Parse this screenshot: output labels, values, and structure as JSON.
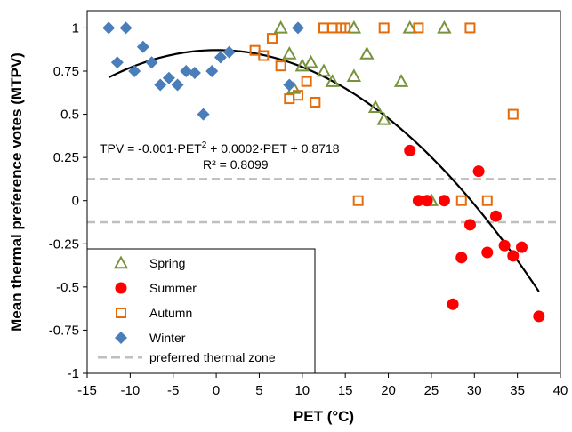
{
  "chart_data": {
    "type": "scatter",
    "title": "",
    "xlabel": "PET (°C)",
    "ylabel": "Mean thermal preference votes (MTPV)",
    "xlim": [
      -15,
      40
    ],
    "ylim": [
      -1,
      1.1
    ],
    "x_ticks": [
      "-15",
      "-10",
      "-5",
      "0",
      "5",
      "10",
      "15",
      "20",
      "25",
      "30",
      "35",
      "40"
    ],
    "y_ticks": [
      "-1",
      "-0.75",
      "-0.5",
      "-0.25",
      "0",
      "0.25",
      "0.5",
      "0.75",
      "1"
    ],
    "x_tick_values": [
      -15,
      -10,
      -5,
      0,
      5,
      10,
      15,
      20,
      25,
      30,
      35,
      40
    ],
    "y_tick_values": [
      -1,
      -0.75,
      -0.5,
      -0.25,
      0,
      0.25,
      0.5,
      0.75,
      1
    ],
    "grid": false,
    "legend_position": "bottom-left",
    "series": [
      {
        "name": "Spring",
        "marker": "triangle",
        "color": "#77933c",
        "points": [
          [
            7.5,
            1
          ],
          [
            16,
            1
          ],
          [
            22.5,
            1
          ],
          [
            26.5,
            1
          ],
          [
            8.5,
            0.85
          ],
          [
            17.5,
            0.85
          ],
          [
            10,
            0.78
          ],
          [
            11,
            0.8
          ],
          [
            12.5,
            0.75
          ],
          [
            9,
            0.65
          ],
          [
            13.5,
            0.69
          ],
          [
            16,
            0.72
          ],
          [
            21.5,
            0.69
          ],
          [
            18.5,
            0.54
          ],
          [
            19.5,
            0.47
          ],
          [
            25,
            0
          ]
        ]
      },
      {
        "name": "Summer",
        "marker": "circle",
        "color": "#ff0000",
        "points": [
          [
            22.5,
            0.29
          ],
          [
            30.5,
            0.17
          ],
          [
            23.5,
            0
          ],
          [
            24.5,
            0
          ],
          [
            26.5,
            0
          ],
          [
            32.5,
            -0.09
          ],
          [
            29.5,
            -0.14
          ],
          [
            28.5,
            -0.33
          ],
          [
            31.5,
            -0.3
          ],
          [
            33.5,
            -0.26
          ],
          [
            34.5,
            -0.32
          ],
          [
            35.5,
            -0.27
          ],
          [
            27.5,
            -0.6
          ],
          [
            37.5,
            -0.67
          ]
        ]
      },
      {
        "name": "Autumn",
        "marker": "square",
        "color": "#e46c0a",
        "points": [
          [
            12.5,
            1
          ],
          [
            13.5,
            1
          ],
          [
            14.5,
            1
          ],
          [
            15,
            1
          ],
          [
            19.5,
            1
          ],
          [
            23.5,
            1
          ],
          [
            29.5,
            1
          ],
          [
            6.5,
            0.94
          ],
          [
            4.5,
            0.87
          ],
          [
            5.5,
            0.84
          ],
          [
            7.5,
            0.78
          ],
          [
            10.5,
            0.69
          ],
          [
            9.5,
            0.61
          ],
          [
            8.5,
            0.59
          ],
          [
            11.5,
            0.57
          ],
          [
            34.5,
            0.5
          ],
          [
            16.5,
            0
          ],
          [
            28.5,
            0
          ],
          [
            31.5,
            0
          ]
        ]
      },
      {
        "name": "Winter",
        "marker": "diamond",
        "color": "#4a7ebb",
        "points": [
          [
            -12.5,
            1
          ],
          [
            -10.5,
            1
          ],
          [
            9.5,
            1
          ],
          [
            -11.5,
            0.8
          ],
          [
            -8.5,
            0.89
          ],
          [
            -9.5,
            0.75
          ],
          [
            -7.5,
            0.8
          ],
          [
            -6.5,
            0.67
          ],
          [
            -5.5,
            0.71
          ],
          [
            -4.5,
            0.67
          ],
          [
            -3.5,
            0.75
          ],
          [
            -2.5,
            0.74
          ],
          [
            0.5,
            0.83
          ],
          [
            1.5,
            0.86
          ],
          [
            -0.5,
            0.75
          ],
          [
            -1.5,
            0.5
          ],
          [
            8.5,
            0.67
          ]
        ]
      }
    ],
    "fit": {
      "name": "TPV = -0.001·PET² + 0.0002·PET + 0.8718",
      "equation_line1": "TPV = -0.001·PET",
      "equation_sup": "2",
      "equation_line2": " + 0.0002·PET + 0.8718",
      "r2_text": "R² = 0.8099",
      "a": -0.001,
      "b": 0.0002,
      "c": 0.8718,
      "x_range": [
        -12.5,
        37.5
      ],
      "color": "#000000"
    },
    "reference_lines": {
      "name": "preferred thermal zone",
      "values": [
        0.125,
        -0.125
      ],
      "color": "#bfbfbf"
    }
  }
}
